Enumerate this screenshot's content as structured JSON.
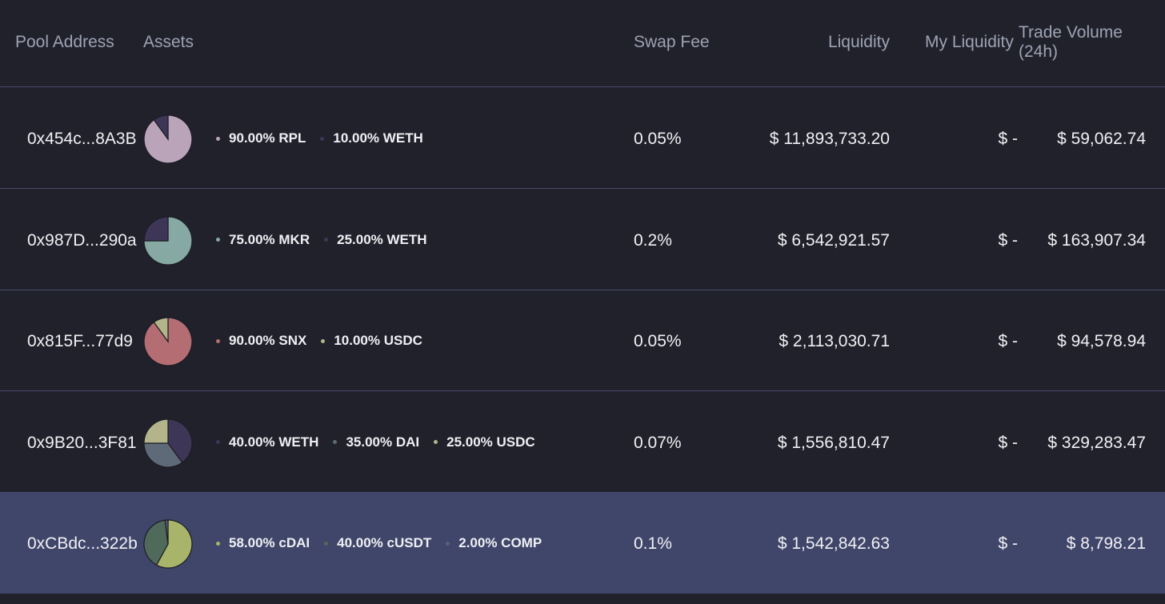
{
  "headers": {
    "pool_address": "Pool Address",
    "assets": "Assets",
    "swap_fee": "Swap Fee",
    "liquidity": "Liquidity",
    "my_liquidity": "My Liquidity",
    "trade_volume": "Trade Volume (24h)"
  },
  "rows": [
    {
      "address": "0x454c...8A3B",
      "fee": "0.05%",
      "liquidity": "$ 11,893,733.20",
      "my_liquidity": "$ -",
      "volume": "$ 59,062.74",
      "selected": false,
      "assets": [
        {
          "label": "90.00% RPL",
          "weight": 90,
          "color": "#b9a4b9"
        },
        {
          "label": "10.00% WETH",
          "weight": 10,
          "color": "#3e3656"
        }
      ]
    },
    {
      "address": "0x987D...290a",
      "fee": "0.2%",
      "liquidity": "$ 6,542,921.57",
      "my_liquidity": "$ -",
      "volume": "$ 163,907.34",
      "selected": false,
      "assets": [
        {
          "label": "75.00% MKR",
          "weight": 75,
          "color": "#86a9a3"
        },
        {
          "label": "25.00% WETH",
          "weight": 25,
          "color": "#3e3656"
        }
      ]
    },
    {
      "address": "0x815F...77d9",
      "fee": "0.05%",
      "liquidity": "$ 2,113,030.71",
      "my_liquidity": "$ -",
      "volume": "$ 94,578.94",
      "selected": false,
      "assets": [
        {
          "label": "90.00% SNX",
          "weight": 90,
          "color": "#b56d74"
        },
        {
          "label": "10.00% USDC",
          "weight": 10,
          "color": "#b4b48a"
        }
      ]
    },
    {
      "address": "0x9B20...3F81",
      "fee": "0.07%",
      "liquidity": "$ 1,556,810.47",
      "my_liquidity": "$ -",
      "volume": "$ 329,283.47",
      "selected": false,
      "assets": [
        {
          "label": "40.00% WETH",
          "weight": 40,
          "color": "#3e3656"
        },
        {
          "label": "35.00% DAI",
          "weight": 35,
          "color": "#5f6a78"
        },
        {
          "label": "25.00% USDC",
          "weight": 25,
          "color": "#b4b48a"
        }
      ]
    },
    {
      "address": "0xCBdc...322b",
      "fee": "0.1%",
      "liquidity": "$ 1,542,842.63",
      "my_liquidity": "$ -",
      "volume": "$ 8,798.21",
      "selected": true,
      "assets": [
        {
          "label": "58.00% cDAI",
          "weight": 58,
          "color": "#a8b469"
        },
        {
          "label": "40.00% cUSDT",
          "weight": 40,
          "color": "#4f6a5a"
        },
        {
          "label": "2.00% COMP",
          "weight": 2,
          "color": "#59607a"
        }
      ]
    }
  ]
}
